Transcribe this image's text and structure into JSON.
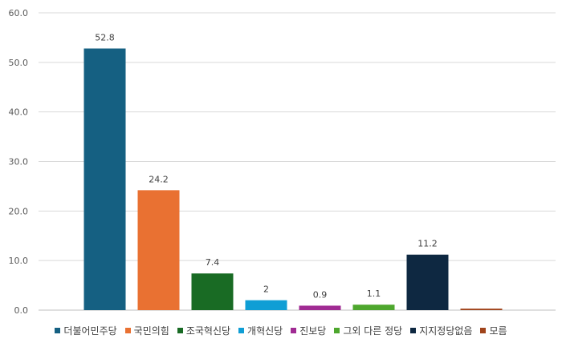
{
  "chart_data": {
    "type": "bar",
    "title": "",
    "xlabel": "",
    "ylabel": "",
    "ylim": [
      0,
      60
    ],
    "yticks": [
      "0.0",
      "10.0",
      "20.0",
      "30.0",
      "40.0",
      "50.0",
      "60.0"
    ],
    "grid": true,
    "legend_position": "bottom",
    "categories": [
      "더불어민주당",
      "국민의힘",
      "조국혁신당",
      "개혁신당",
      "진보당",
      "그외 다른 정당",
      "지지정당없음",
      "모름"
    ],
    "values": [
      52.8,
      24.2,
      7.4,
      2,
      0.9,
      1.1,
      11.2,
      0.3
    ],
    "data_labels": [
      "52.8",
      "24.2",
      "7.4",
      "2",
      "0.9",
      "1.1",
      "11.2",
      ""
    ],
    "colors": [
      "#156082",
      "#e97132",
      "#196b24",
      "#0f9ed5",
      "#a02b93",
      "#4ea72e",
      "#0e2841",
      "#a0441b"
    ]
  }
}
